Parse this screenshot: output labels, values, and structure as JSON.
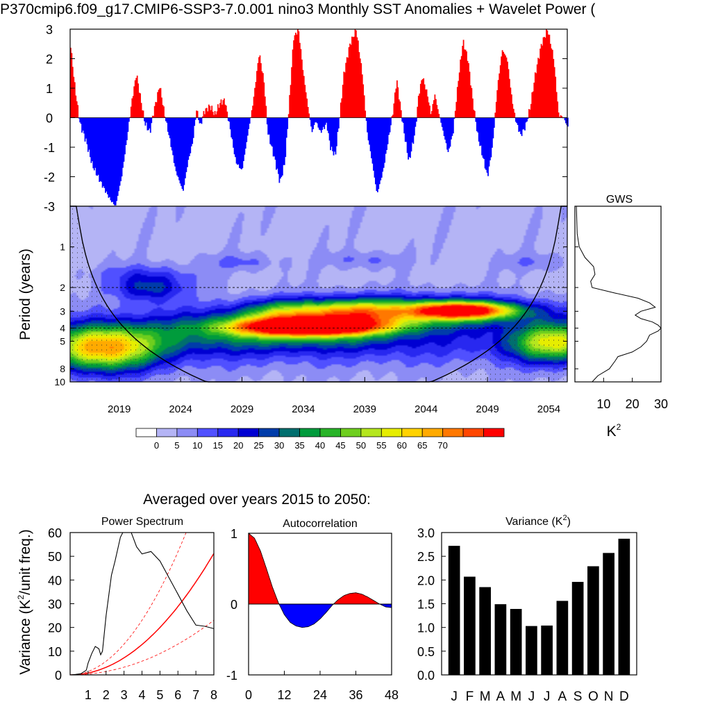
{
  "title": "P370cmip6.f09_g17.CMIP6-SSP3-7.0.001 nino3 Monthly SST Anomalies + Wavelet Power (",
  "section_title": "Averaged over years 2015 to 2050:",
  "chart_data": [
    {
      "type": "bar",
      "name": "nino3-anomaly-timeseries",
      "title": "",
      "xlim": [
        2015,
        2055.5
      ],
      "ylim": [
        -3,
        3
      ],
      "yticks": [
        "3",
        "2",
        "1",
        "0",
        "-1",
        "-2",
        "-3"
      ],
      "positive_color": "#ff0000",
      "negative_color": "#0000ff",
      "anchors": [
        [
          2015.0,
          2.6
        ],
        [
          2015.4,
          1.0
        ],
        [
          2015.8,
          -0.2
        ],
        [
          2016.3,
          -0.8
        ],
        [
          2016.8,
          -1.6
        ],
        [
          2017.5,
          -2.2
        ],
        [
          2018.3,
          -2.8
        ],
        [
          2018.7,
          -3.0
        ],
        [
          2019.2,
          -2.0
        ],
        [
          2019.7,
          -0.5
        ],
        [
          2020.0,
          0.5
        ],
        [
          2020.4,
          1.5
        ],
        [
          2020.8,
          0.5
        ],
        [
          2021.1,
          -0.2
        ],
        [
          2021.5,
          -0.5
        ],
        [
          2021.8,
          0.2
        ],
        [
          2022.3,
          1.1
        ],
        [
          2022.7,
          0.1
        ],
        [
          2023.1,
          -0.7
        ],
        [
          2023.6,
          -1.8
        ],
        [
          2024.2,
          -2.5
        ],
        [
          2024.6,
          -1.5
        ],
        [
          2025.0,
          -0.8
        ],
        [
          2025.3,
          0.3
        ],
        [
          2025.6,
          -0.3
        ],
        [
          2025.9,
          0.2
        ],
        [
          2026.4,
          0.4
        ],
        [
          2026.8,
          0.1
        ],
        [
          2027.2,
          0.5
        ],
        [
          2027.6,
          0.6
        ],
        [
          2028.0,
          -0.3
        ],
        [
          2028.5,
          -1.5
        ],
        [
          2029.0,
          -1.8
        ],
        [
          2029.5,
          -0.5
        ],
        [
          2029.9,
          0.5
        ],
        [
          2030.4,
          2.2
        ],
        [
          2030.8,
          1.2
        ],
        [
          2031.1,
          -0.5
        ],
        [
          2031.6,
          -1.3
        ],
        [
          2032.1,
          -2.2
        ],
        [
          2032.5,
          -1.5
        ],
        [
          2032.8,
          0.2
        ],
        [
          2033.2,
          2.7
        ],
        [
          2033.6,
          3.0
        ],
        [
          2034.0,
          1.5
        ],
        [
          2034.4,
          0.3
        ],
        [
          2034.7,
          -0.5
        ],
        [
          2035.0,
          -0.1
        ],
        [
          2035.4,
          -0.5
        ],
        [
          2035.9,
          -0.2
        ],
        [
          2036.2,
          -1.0
        ],
        [
          2036.6,
          -1.3
        ],
        [
          2036.9,
          -0.2
        ],
        [
          2037.3,
          1.5
        ],
        [
          2037.8,
          2.5
        ],
        [
          2038.3,
          3.0
        ],
        [
          2038.8,
          1.5
        ],
        [
          2039.2,
          -0.5
        ],
        [
          2039.6,
          -1.5
        ],
        [
          2040.0,
          -2.6
        ],
        [
          2040.5,
          -1.8
        ],
        [
          2040.9,
          -0.8
        ],
        [
          2041.3,
          0.2
        ],
        [
          2041.6,
          1.3
        ],
        [
          2041.9,
          0.4
        ],
        [
          2042.2,
          -0.5
        ],
        [
          2042.6,
          -1.5
        ],
        [
          2043.1,
          -0.5
        ],
        [
          2043.4,
          0.8
        ],
        [
          2043.7,
          1.4
        ],
        [
          2044.1,
          0.8
        ],
        [
          2044.4,
          0.1
        ],
        [
          2044.7,
          0.8
        ],
        [
          2045.0,
          0.2
        ],
        [
          2045.4,
          -0.5
        ],
        [
          2045.8,
          -1.2
        ],
        [
          2046.2,
          -0.5
        ],
        [
          2046.6,
          1.2
        ],
        [
          2047.0,
          2.6
        ],
        [
          2047.4,
          2.0
        ],
        [
          2047.8,
          0.6
        ],
        [
          2048.2,
          -0.6
        ],
        [
          2048.6,
          -1.3
        ],
        [
          2049.0,
          -2.0
        ],
        [
          2049.4,
          -1.0
        ],
        [
          2049.8,
          1.0
        ],
        [
          2050.2,
          2.3
        ],
        [
          2050.6,
          2.0
        ],
        [
          2051.0,
          0.6
        ],
        [
          2051.3,
          -0.1
        ],
        [
          2051.7,
          -0.6
        ],
        [
          2052.1,
          -0.3
        ],
        [
          2052.5,
          0.4
        ],
        [
          2052.9,
          1.5
        ],
        [
          2053.4,
          2.5
        ],
        [
          2053.9,
          3.0
        ],
        [
          2054.4,
          2.0
        ],
        [
          2054.8,
          0.1
        ],
        [
          2055.2,
          0.0
        ],
        [
          2055.5,
          -0.3
        ]
      ]
    },
    {
      "type": "heatmap",
      "name": "wavelet-power",
      "ylabel": "Period (years)",
      "xticks": [
        "2019",
        "2024",
        "2029",
        "2034",
        "2039",
        "2044",
        "2049",
        "2054"
      ],
      "yticks": [
        "1",
        "2",
        "3",
        "4",
        "5",
        "8",
        "10"
      ],
      "xlim": [
        2015,
        2055.5
      ],
      "ylim": [
        0.5,
        10
      ],
      "blobs": [
        {
          "t": 2017.5,
          "p": 5.6,
          "w": 3.2,
          "h": 0.28,
          "a": 62
        },
        {
          "t": 2021.5,
          "p": 2.0,
          "w": 2.0,
          "h": 0.17,
          "a": 24
        },
        {
          "t": 2034.5,
          "p": 3.9,
          "w": 4.0,
          "h": 0.1,
          "a": 75
        },
        {
          "t": 2034.0,
          "p": 3.9,
          "w": 6.0,
          "h": 0.22,
          "a": 32
        },
        {
          "t": 2032.5,
          "p": 3.0,
          "w": 2.5,
          "h": 0.15,
          "a": 25
        },
        {
          "t": 2038.0,
          "p": 3.0,
          "w": 2.5,
          "h": 0.15,
          "a": 30
        },
        {
          "t": 2047.0,
          "p": 2.95,
          "w": 3.0,
          "h": 0.1,
          "a": 62
        },
        {
          "t": 2044.0,
          "p": 3.0,
          "w": 6.0,
          "h": 0.18,
          "a": 36
        },
        {
          "t": 2054.5,
          "p": 5.1,
          "w": 2.6,
          "h": 0.24,
          "a": 48
        },
        {
          "t": 2040.0,
          "p": 5.0,
          "w": 12.0,
          "h": 0.3,
          "a": 14
        },
        {
          "t": 2025.0,
          "p": 4.5,
          "w": 5.0,
          "h": 0.32,
          "a": 14
        },
        {
          "t": 2029.0,
          "p": 1.3,
          "w": 2.0,
          "h": 0.1,
          "a": 8
        },
        {
          "t": 2039.0,
          "p": 1.25,
          "w": 2.0,
          "h": 0.1,
          "a": 8
        },
        {
          "t": 2053.0,
          "p": 1.3,
          "w": 1.8,
          "h": 0.1,
          "a": 7
        },
        {
          "t": 2021.0,
          "p": 1.55,
          "w": 3.0,
          "h": 0.12,
          "a": 7
        }
      ]
    },
    {
      "type": "line",
      "name": "global-wavelet-spectrum",
      "title": "GWS",
      "xlabel": "K",
      "xlabel_superscript": "2",
      "xticks": [
        "10",
        "20",
        "30"
      ],
      "xlim": [
        0,
        30
      ],
      "period": [
        0.5,
        0.8,
        1.0,
        1.2,
        1.4,
        1.6,
        1.8,
        2.0,
        2.2,
        2.4,
        2.6,
        2.8,
        3.0,
        3.2,
        3.4,
        3.6,
        3.8,
        4.0,
        4.2,
        4.5,
        5.0,
        5.5,
        6.0,
        6.5,
        7.0,
        8.0,
        9.0,
        10.0
      ],
      "power": [
        0.5,
        0.8,
        1.5,
        3.5,
        6.5,
        7.0,
        5.5,
        6.0,
        14.0,
        22.0,
        26.0,
        28.0,
        23.0,
        21.0,
        23.0,
        27.0,
        29.0,
        30.0,
        29.0,
        26.0,
        25.0,
        23.0,
        20.0,
        15.0,
        14.0,
        12.0,
        8.0,
        6.0
      ]
    },
    {
      "type": "bar",
      "name": "wavelet-power-colorbar",
      "labels": [
        "0",
        "5",
        "10",
        "15",
        "20",
        "25",
        "30",
        "35",
        "40",
        "45",
        "50",
        "55",
        "60",
        "65",
        "70"
      ],
      "colors": [
        "#ffffff",
        "#b4b4f5",
        "#8c8cf5",
        "#5050ff",
        "#2828f0",
        "#0000d2",
        "#003caa",
        "#006e6e",
        "#009b3c",
        "#28b428",
        "#6ece1e",
        "#b4e61e",
        "#e6ed00",
        "#ffd200",
        "#ffaa00",
        "#ff7800",
        "#ff4600",
        "#ff0000"
      ]
    },
    {
      "type": "line",
      "name": "power-spectrum",
      "title": "Power Spectrum",
      "ylabel": "Variance (K",
      "ylabel_superscript": "2",
      "ylabel_tail": "/unit freq.)",
      "xticks": [
        "1",
        "2",
        "3",
        "4",
        "5",
        "6",
        "7",
        "8"
      ],
      "yticks": [
        "0",
        "10",
        "20",
        "30",
        "40",
        "50",
        "60"
      ],
      "xlim": [
        0,
        8
      ],
      "ylim": [
        0,
        60
      ],
      "x": [
        0.0,
        0.3,
        0.6,
        0.9,
        1.0,
        1.2,
        1.4,
        1.6,
        1.7,
        1.8,
        2.0,
        2.3,
        2.5,
        2.8,
        3.0,
        3.3,
        3.5,
        3.7,
        4.0,
        4.5,
        5.0,
        5.5,
        6.0,
        6.5,
        7.0,
        7.5,
        8.0
      ],
      "y": [
        0.0,
        0.2,
        0.5,
        2.0,
        5.0,
        9.0,
        12.0,
        11.0,
        8.5,
        10.0,
        25.0,
        42.0,
        48.0,
        58.0,
        61.0,
        62.0,
        58.0,
        54.0,
        51.0,
        52.0,
        48.0,
        41.0,
        34.0,
        27.0,
        21.0,
        20.5,
        19.5
      ],
      "red_noise_scale": 0.8,
      "confidence_factors": [
        0.45,
        1.8
      ]
    },
    {
      "type": "area",
      "name": "autocorrelation",
      "title": "Autocorrelation",
      "xticks": [
        "0",
        "12",
        "24",
        "36",
        "48"
      ],
      "yticks": [
        "1",
        "0",
        "-1"
      ],
      "xlim": [
        0,
        48
      ],
      "ylim": [
        -1,
        1
      ],
      "x": [
        0,
        2,
        4,
        6,
        8,
        10,
        12,
        14,
        16,
        18,
        20,
        22,
        24,
        26,
        28,
        30,
        32,
        34,
        36,
        38,
        40,
        42,
        44,
        46,
        48
      ],
      "y": [
        1.0,
        0.93,
        0.75,
        0.5,
        0.24,
        0.02,
        -0.15,
        -0.26,
        -0.31,
        -0.33,
        -0.32,
        -0.28,
        -0.21,
        -0.12,
        -0.02,
        0.06,
        0.12,
        0.15,
        0.16,
        0.14,
        0.1,
        0.05,
        0.0,
        -0.04,
        -0.05
      ]
    },
    {
      "type": "bar",
      "name": "monthly-variance",
      "title": "Variance (K",
      "title_superscript": "2",
      "title_tail": ")",
      "categories": [
        "J",
        "F",
        "M",
        "A",
        "M",
        "J",
        "J",
        "A",
        "S",
        "O",
        "N",
        "D"
      ],
      "values": [
        2.72,
        2.07,
        1.85,
        1.49,
        1.39,
        1.03,
        1.04,
        1.56,
        1.96,
        2.29,
        2.57,
        2.87
      ],
      "yticks": [
        "0.0",
        "0.5",
        "1.0",
        "1.5",
        "2.0",
        "2.5",
        "3.0"
      ],
      "ylim": [
        0,
        3
      ],
      "color": "#000000"
    }
  ]
}
